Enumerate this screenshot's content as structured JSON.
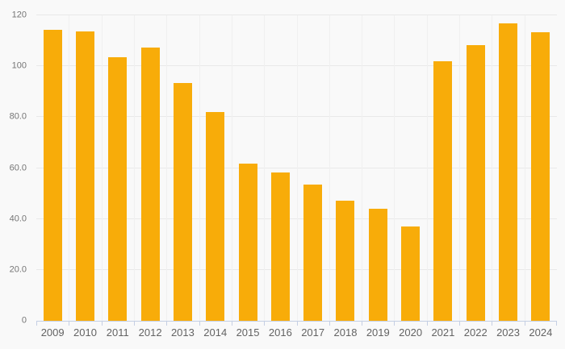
{
  "chart_data": {
    "type": "bar",
    "title": "",
    "xlabel": "",
    "ylabel": "",
    "categories": [
      "2009",
      "2010",
      "2011",
      "2012",
      "2013",
      "2014",
      "2015",
      "2016",
      "2017",
      "2018",
      "2019",
      "2020",
      "2021",
      "2022",
      "2023",
      "2024"
    ],
    "values": [
      114.3,
      113.8,
      103.5,
      107.3,
      93.4,
      82.0,
      61.6,
      58.2,
      53.6,
      47.3,
      44.0,
      37.1,
      102.0,
      108.2,
      116.8,
      113.2
    ],
    "ylim": [
      0,
      120
    ],
    "y_tick_values": [
      0,
      20,
      40,
      60,
      80,
      100,
      120
    ],
    "y_tick_labels": [
      "0",
      "20.0",
      "40.0",
      "60.0",
      "80.0",
      "100",
      "120"
    ],
    "grid": true,
    "legend": false,
    "bar_color": "#F8AC09",
    "colors": {
      "background": "#f9f9f9",
      "h_gridline": "#e9e9e9",
      "v_gridline": "#f0f0f0",
      "axis": "#c5cfe4",
      "y_label_text": "#757575",
      "x_label_text": "#636363"
    }
  }
}
